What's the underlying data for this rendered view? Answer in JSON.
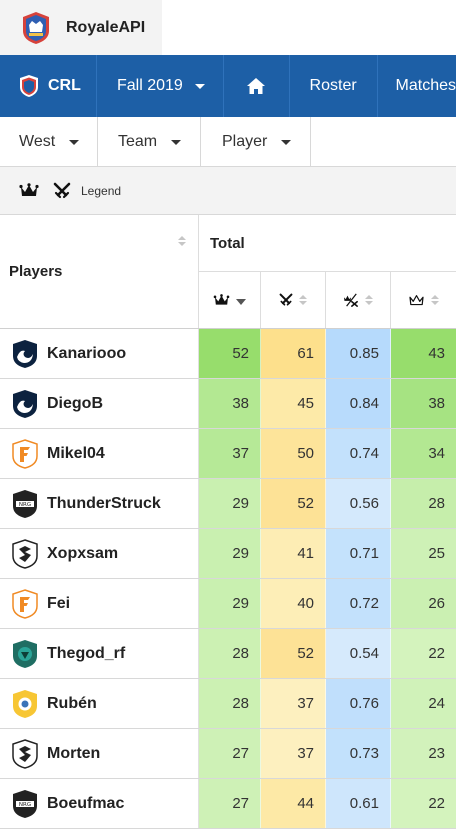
{
  "brand": {
    "name": "RoyaleAPI",
    "logo_icon": "royaleapi-logo-icon"
  },
  "nav": {
    "league": "CRL",
    "season": "Fall 2019",
    "home_icon": "home-icon",
    "roster": "Roster",
    "matches": "Matches"
  },
  "filters": {
    "region": "West",
    "team": "Team",
    "player": "Player"
  },
  "legend": {
    "label": "Legend",
    "icons": [
      "crown-icon",
      "crossed-swords-icon"
    ]
  },
  "table": {
    "players_header": "Players",
    "group_header": "Total",
    "columns": [
      {
        "icon": "crown-icon",
        "sorted": "desc"
      },
      {
        "icon": "crossed-swords-icon",
        "sorted": "none"
      },
      {
        "icon": "crown-ratio-icon",
        "sorted": "none"
      },
      {
        "icon": "crown-outline-icon",
        "sorted": "none"
      }
    ],
    "rows": [
      {
        "team": "Team Liquid",
        "name": "Kanariooo",
        "v1": "52",
        "v2": "61",
        "v3": "0.85",
        "v4": "43",
        "colors": [
          "#97dd6c",
          "#fde08c",
          "#b6dafc",
          "#97dd6c"
        ]
      },
      {
        "team": "Team Liquid",
        "name": "DiegoB",
        "v1": "38",
        "v2": "45",
        "v3": "0.84",
        "v4": "38",
        "colors": [
          "#b3e892",
          "#fdeaa8",
          "#b8dbfc",
          "#a6e382"
        ]
      },
      {
        "team": "Fnatic",
        "name": "Mikel04",
        "v1": "37",
        "v2": "50",
        "v3": "0.74",
        "v4": "34",
        "colors": [
          "#b6e997",
          "#fde49a",
          "#c3e1fc",
          "#b3e892"
        ]
      },
      {
        "team": "NRG",
        "name": "ThunderStruck",
        "v1": "29",
        "v2": "52",
        "v3": "0.56",
        "v4": "28",
        "colors": [
          "#c9f0b0",
          "#fde296",
          "#d4e9fc",
          "#c6eeab"
        ]
      },
      {
        "team": "SK Gaming",
        "name": "Xopxsam",
        "v1": "29",
        "v2": "41",
        "v3": "0.71",
        "v4": "25",
        "colors": [
          "#c9f0b0",
          "#fdedb4",
          "#c4e2fc",
          "#cef1b6"
        ]
      },
      {
        "team": "Fnatic",
        "name": "Fei",
        "v1": "29",
        "v2": "40",
        "v3": "0.72",
        "v4": "26",
        "colors": [
          "#c9f0b0",
          "#fdeeb7",
          "#c3e1fc",
          "#cbf0b2"
        ]
      },
      {
        "team": "Tribe Gaming",
        "name": "Thegod_rf",
        "v1": "28",
        "v2": "52",
        "v3": "0.54",
        "v4": "22",
        "colors": [
          "#ccf1b3",
          "#fde296",
          "#d6eafc",
          "#d4f3bd"
        ]
      },
      {
        "team": "Queso",
        "name": "Rubén",
        "v1": "28",
        "v2": "37",
        "v3": "0.76",
        "v4": "24",
        "colors": [
          "#ccf1b3",
          "#fdf0bf",
          "#c0dffc",
          "#d0f2b9"
        ]
      },
      {
        "team": "SK Gaming",
        "name": "Morten",
        "v1": "27",
        "v2": "37",
        "v3": "0.73",
        "v4": "23",
        "colors": [
          "#cef1b6",
          "#fdf0bf",
          "#c2e1fc",
          "#d2f2bb"
        ]
      },
      {
        "team": "NRG",
        "name": "Boeufmac",
        "v1": "27",
        "v2": "44",
        "v3": "0.61",
        "v4": "22",
        "colors": [
          "#cef1b6",
          "#fde9a6",
          "#cee6fc",
          "#d4f3bd"
        ]
      }
    ]
  }
}
